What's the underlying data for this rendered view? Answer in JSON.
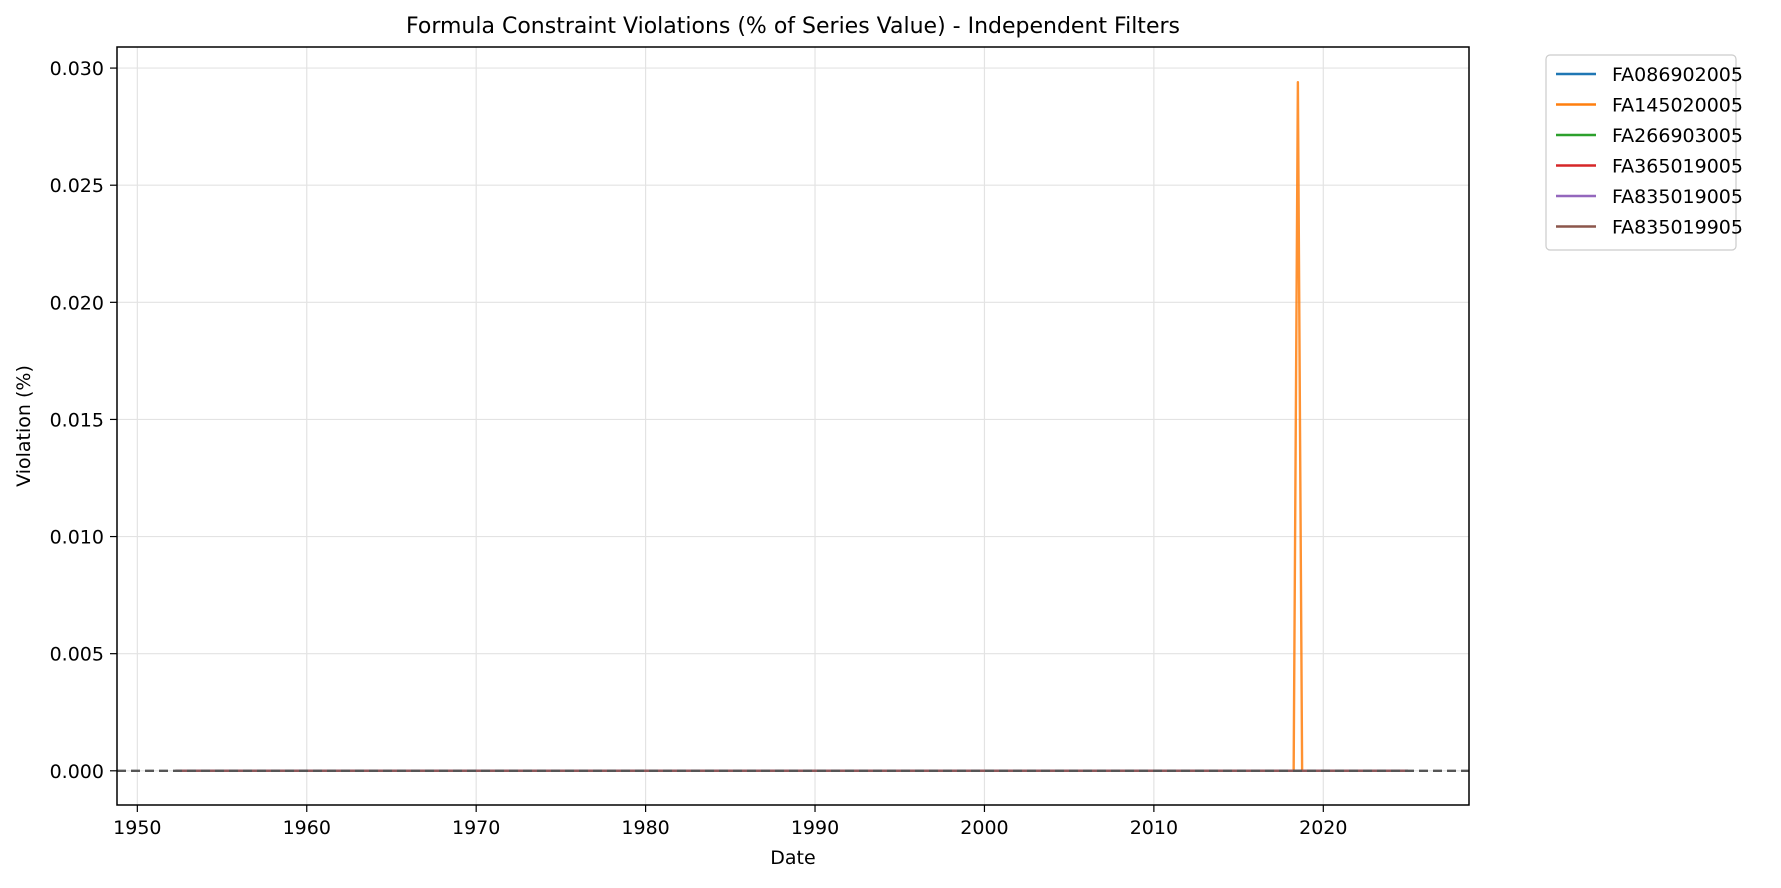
{
  "chart_data": {
    "type": "line",
    "title": "Formula Constraint Violations (% of Series Value) - Independent Filters",
    "xlabel": "Date",
    "ylabel": "Violation (%)",
    "xlim": [
      1948.8,
      2028.6
    ],
    "ylim": [
      -0.00146,
      0.0309
    ],
    "x_ticks": [
      1950,
      1960,
      1970,
      1980,
      1990,
      2000,
      2010,
      2020
    ],
    "y_ticks": [
      0.0,
      0.005,
      0.01,
      0.015,
      0.02,
      0.025,
      0.03
    ],
    "y_tick_labels": [
      "0.000",
      "0.005",
      "0.010",
      "0.015",
      "0.020",
      "0.025",
      "0.030"
    ],
    "grid": true,
    "legend_position": "outside-top-right",
    "reference_line": {
      "y": 0,
      "style": "dashed",
      "color": "#555555"
    },
    "series": [
      {
        "name": "FA086902005",
        "color": "#1f77b4",
        "x": [
          1952.25,
          2025.0
        ],
        "values": [
          0,
          0
        ]
      },
      {
        "name": "FA145020005",
        "color": "#ff7f0e",
        "x": [
          1952.25,
          2018.0,
          2018.25,
          2018.5,
          2018.75,
          2025.0
        ],
        "values": [
          0,
          0,
          0.0,
          0.0294,
          0,
          0
        ]
      },
      {
        "name": "FA266903005",
        "color": "#2ca02c",
        "x": [
          1952.25,
          2025.0
        ],
        "values": [
          0,
          0
        ]
      },
      {
        "name": "FA365019005",
        "color": "#d62728",
        "x": [
          1952.25,
          2025.0
        ],
        "values": [
          0,
          0
        ]
      },
      {
        "name": "FA835019005",
        "color": "#9467bd",
        "x": [
          1952.25,
          2025.0
        ],
        "values": [
          0,
          0
        ]
      },
      {
        "name": "FA835019905",
        "color": "#8c564b",
        "x": [
          1952.25,
          2025.0
        ],
        "values": [
          0,
          0
        ]
      }
    ]
  }
}
